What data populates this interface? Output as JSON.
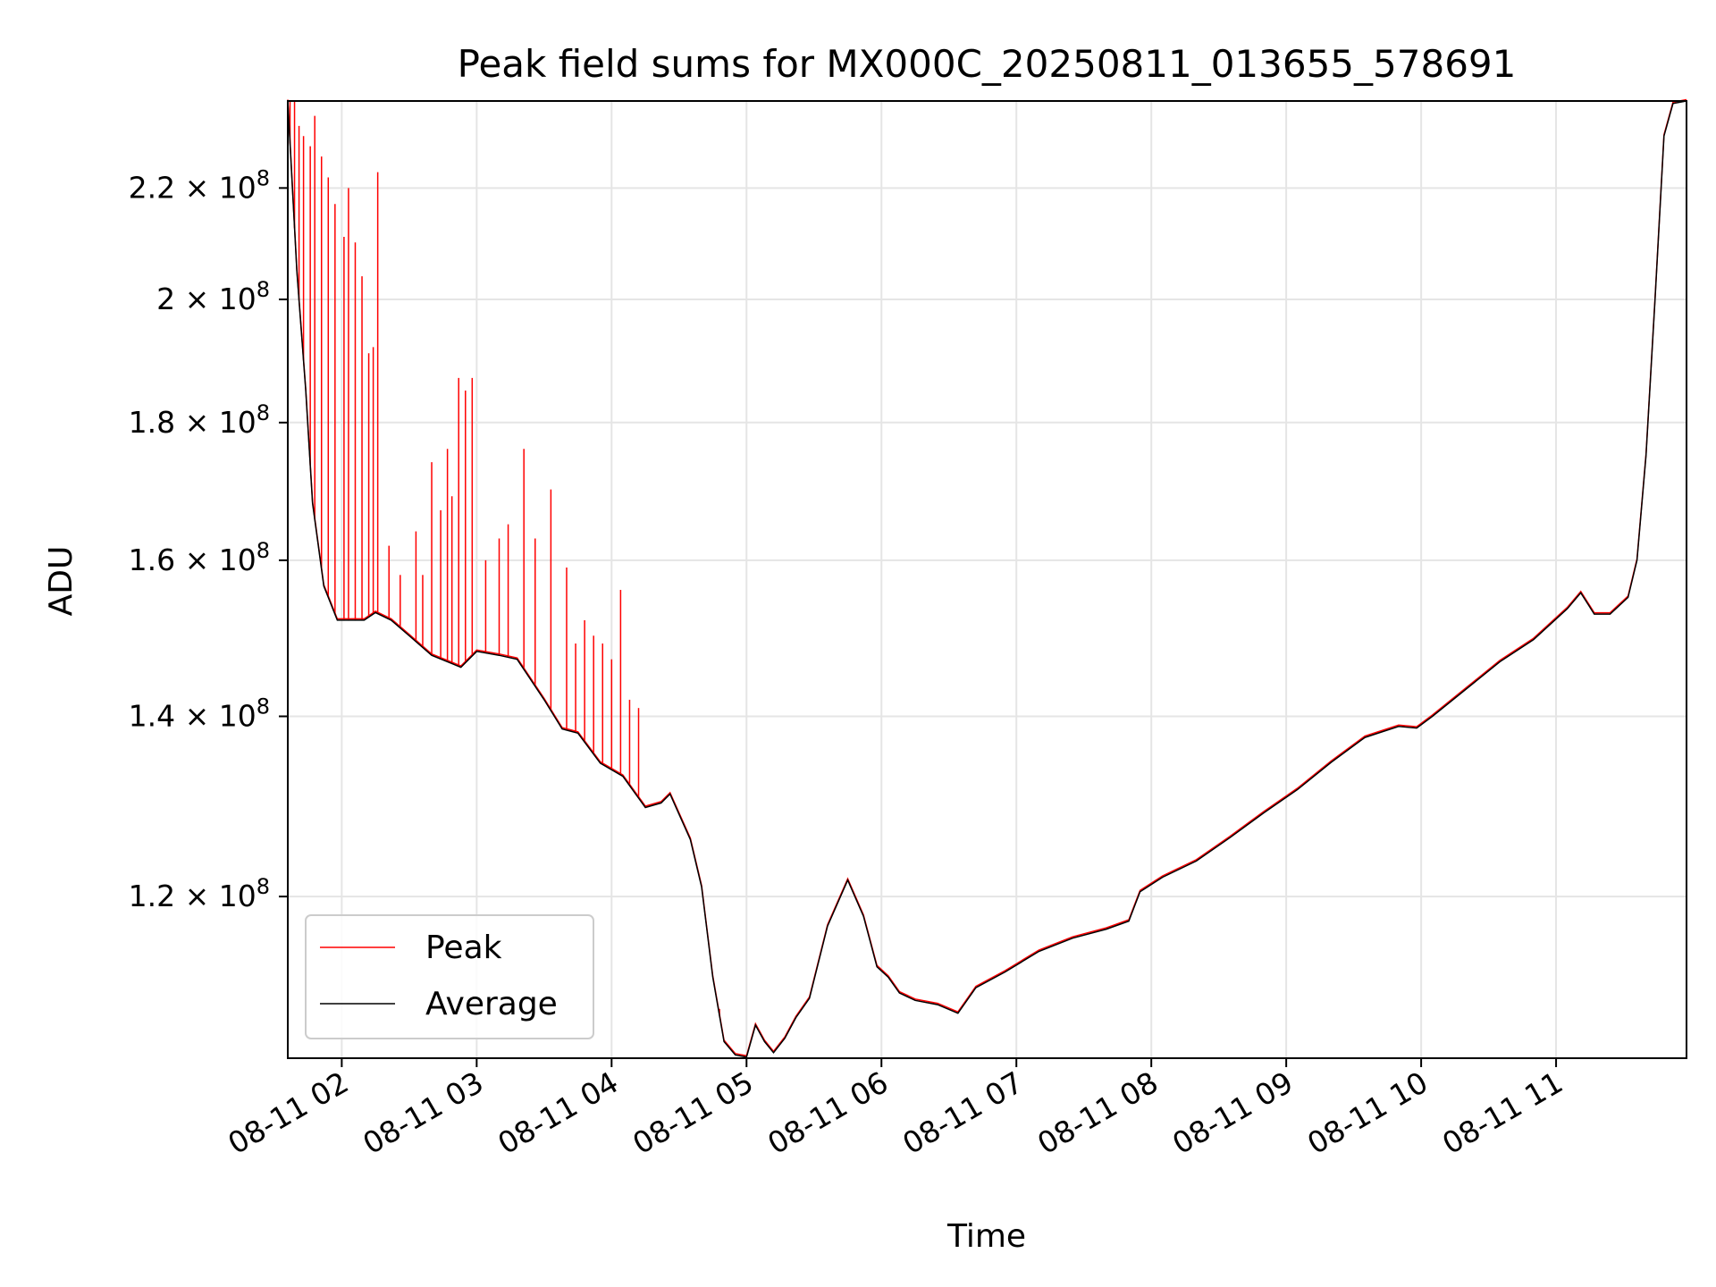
{
  "chart_data": {
    "type": "line",
    "title": "Peak field sums for MX000C_20250811_013655_578691",
    "xlabel": "Time",
    "ylabel": "ADU",
    "yscale": "log",
    "grid": true,
    "legend_position": "lower-left",
    "xlim": [
      "2025-08-11 01:36",
      "2025-08-11 11:58"
    ],
    "ylim": [
      104500000,
      237000000
    ],
    "x_ticks": [
      {
        "time": "2025-08-11 02:00",
        "label": "08-11 02"
      },
      {
        "time": "2025-08-11 03:00",
        "label": "08-11 03"
      },
      {
        "time": "2025-08-11 04:00",
        "label": "08-11 04"
      },
      {
        "time": "2025-08-11 05:00",
        "label": "08-11 05"
      },
      {
        "time": "2025-08-11 06:00",
        "label": "08-11 06"
      },
      {
        "time": "2025-08-11 07:00",
        "label": "08-11 07"
      },
      {
        "time": "2025-08-11 08:00",
        "label": "08-11 08"
      },
      {
        "time": "2025-08-11 09:00",
        "label": "08-11 09"
      },
      {
        "time": "2025-08-11 10:00",
        "label": "08-11 10"
      },
      {
        "time": "2025-08-11 11:00",
        "label": "08-11 11"
      }
    ],
    "y_ticks": [
      {
        "value": 120000000,
        "mantissa": "1.2",
        "exponent": "8"
      },
      {
        "value": 140000000,
        "mantissa": "1.4",
        "exponent": "8"
      },
      {
        "value": 160000000,
        "mantissa": "1.6",
        "exponent": "8"
      },
      {
        "value": 180000000,
        "mantissa": "1.8",
        "exponent": "8"
      },
      {
        "value": 200000000,
        "mantissa": "2",
        "exponent": "8"
      },
      {
        "value": 220000000,
        "mantissa": "2.2",
        "exponent": "8"
      }
    ],
    "series": [
      {
        "name": "Average",
        "color": "#000000",
        "points": [
          [
            "2025-08-11 01:36",
            237000000
          ],
          [
            "2025-08-11 01:40",
            205000000
          ],
          [
            "2025-08-11 01:44",
            185000000
          ],
          [
            "2025-08-11 01:47",
            168000000
          ],
          [
            "2025-08-11 01:52",
            156500000
          ],
          [
            "2025-08-11 01:58",
            152000000
          ],
          [
            "2025-08-11 02:10",
            152000000
          ],
          [
            "2025-08-11 02:15",
            153000000
          ],
          [
            "2025-08-11 02:22",
            152000000
          ],
          [
            "2025-08-11 02:30",
            150000000
          ],
          [
            "2025-08-11 02:40",
            147500000
          ],
          [
            "2025-08-11 02:53",
            146000000
          ],
          [
            "2025-08-11 03:00",
            148000000
          ],
          [
            "2025-08-11 03:10",
            147500000
          ],
          [
            "2025-08-11 03:18",
            147000000
          ],
          [
            "2025-08-11 03:30",
            142000000
          ],
          [
            "2025-08-11 03:38",
            138500000
          ],
          [
            "2025-08-11 03:45",
            138000000
          ],
          [
            "2025-08-11 03:55",
            134500000
          ],
          [
            "2025-08-11 04:05",
            133000000
          ],
          [
            "2025-08-11 04:15",
            129500000
          ],
          [
            "2025-08-11 04:22",
            130000000
          ],
          [
            "2025-08-11 04:26",
            131000000
          ],
          [
            "2025-08-11 04:35",
            126000000
          ],
          [
            "2025-08-11 04:40",
            121000000
          ],
          [
            "2025-08-11 04:45",
            112000000
          ],
          [
            "2025-08-11 04:50",
            106000000
          ],
          [
            "2025-08-11 04:55",
            104800000
          ],
          [
            "2025-08-11 05:00",
            104600000
          ],
          [
            "2025-08-11 05:04",
            107500000
          ],
          [
            "2025-08-11 05:08",
            106000000
          ],
          [
            "2025-08-11 05:12",
            105000000
          ],
          [
            "2025-08-11 05:17",
            106300000
          ],
          [
            "2025-08-11 05:22",
            108200000
          ],
          [
            "2025-08-11 05:28",
            110000000
          ],
          [
            "2025-08-11 05:36",
            117000000
          ],
          [
            "2025-08-11 05:45",
            121700000
          ],
          [
            "2025-08-11 05:52",
            118000000
          ],
          [
            "2025-08-11 05:58",
            113000000
          ],
          [
            "2025-08-11 06:03",
            112000000
          ],
          [
            "2025-08-11 06:08",
            110500000
          ],
          [
            "2025-08-11 06:15",
            109800000
          ],
          [
            "2025-08-11 06:25",
            109400000
          ],
          [
            "2025-08-11 06:34",
            108600000
          ],
          [
            "2025-08-11 06:42",
            111000000
          ],
          [
            "2025-08-11 06:55",
            112500000
          ],
          [
            "2025-08-11 07:10",
            114500000
          ],
          [
            "2025-08-11 07:25",
            115800000
          ],
          [
            "2025-08-11 07:40",
            116700000
          ],
          [
            "2025-08-11 07:50",
            117500000
          ],
          [
            "2025-08-11 07:55",
            120500000
          ],
          [
            "2025-08-11 08:05",
            122000000
          ],
          [
            "2025-08-11 08:20",
            123700000
          ],
          [
            "2025-08-11 08:35",
            126200000
          ],
          [
            "2025-08-11 08:50",
            128900000
          ],
          [
            "2025-08-11 09:05",
            131500000
          ],
          [
            "2025-08-11 09:20",
            134600000
          ],
          [
            "2025-08-11 09:35",
            137500000
          ],
          [
            "2025-08-11 09:50",
            138800000
          ],
          [
            "2025-08-11 09:58",
            138600000
          ],
          [
            "2025-08-11 10:05",
            140000000
          ],
          [
            "2025-08-11 10:20",
            143300000
          ],
          [
            "2025-08-11 10:35",
            146700000
          ],
          [
            "2025-08-11 10:50",
            149500000
          ],
          [
            "2025-08-11 11:05",
            153500000
          ],
          [
            "2025-08-11 11:11",
            155600000
          ],
          [
            "2025-08-11 11:17",
            152800000
          ],
          [
            "2025-08-11 11:24",
            152800000
          ],
          [
            "2025-08-11 11:32",
            155000000
          ],
          [
            "2025-08-11 11:36",
            160000000
          ],
          [
            "2025-08-11 11:40",
            175000000
          ],
          [
            "2025-08-11 11:44",
            200000000
          ],
          [
            "2025-08-11 11:48",
            230000000
          ],
          [
            "2025-08-11 11:52",
            236500000
          ],
          [
            "2025-08-11 11:58",
            237000000
          ]
        ]
      },
      {
        "name": "Peak",
        "color": "#ff0000",
        "spikes": [
          [
            "2025-08-11 01:36",
            237000000
          ],
          [
            "2025-08-11 01:37",
            237000000
          ],
          [
            "2025-08-11 01:39",
            237000000
          ],
          [
            "2025-08-11 01:41",
            232000000
          ],
          [
            "2025-08-11 01:43",
            230000000
          ],
          [
            "2025-08-11 01:46",
            228000000
          ],
          [
            "2025-08-11 01:48",
            234000000
          ],
          [
            "2025-08-11 01:51",
            226000000
          ],
          [
            "2025-08-11 01:54",
            222000000
          ],
          [
            "2025-08-11 01:57",
            217000000
          ],
          [
            "2025-08-11 02:01",
            211000000
          ],
          [
            "2025-08-11 02:03",
            220000000
          ],
          [
            "2025-08-11 02:06",
            210000000
          ],
          [
            "2025-08-11 02:09",
            204000000
          ],
          [
            "2025-08-11 02:12",
            191000000
          ],
          [
            "2025-08-11 02:14",
            192000000
          ],
          [
            "2025-08-11 02:16",
            223000000
          ],
          [
            "2025-08-11 02:21",
            162000000
          ],
          [
            "2025-08-11 02:26",
            158000000
          ],
          [
            "2025-08-11 02:33",
            164000000
          ],
          [
            "2025-08-11 02:36",
            158000000
          ],
          [
            "2025-08-11 02:40",
            174000000
          ],
          [
            "2025-08-11 02:44",
            167000000
          ],
          [
            "2025-08-11 02:47",
            176000000
          ],
          [
            "2025-08-11 02:49",
            169000000
          ],
          [
            "2025-08-11 02:52",
            187000000
          ],
          [
            "2025-08-11 02:55",
            185000000
          ],
          [
            "2025-08-11 02:58",
            187000000
          ],
          [
            "2025-08-11 03:04",
            160000000
          ],
          [
            "2025-08-11 03:10",
            163000000
          ],
          [
            "2025-08-11 03:14",
            165000000
          ],
          [
            "2025-08-11 03:21",
            176000000
          ],
          [
            "2025-08-11 03:26",
            163000000
          ],
          [
            "2025-08-11 03:33",
            170000000
          ],
          [
            "2025-08-11 03:40",
            159000000
          ],
          [
            "2025-08-11 03:44",
            149000000
          ],
          [
            "2025-08-11 03:48",
            152000000
          ],
          [
            "2025-08-11 03:52",
            150000000
          ],
          [
            "2025-08-11 03:56",
            149000000
          ],
          [
            "2025-08-11 04:00",
            147000000
          ],
          [
            "2025-08-11 04:04",
            156000000
          ],
          [
            "2025-08-11 04:08",
            142000000
          ],
          [
            "2025-08-11 04:12",
            141000000
          ],
          [
            "2025-08-11 04:48",
            109000000
          ]
        ]
      }
    ]
  }
}
